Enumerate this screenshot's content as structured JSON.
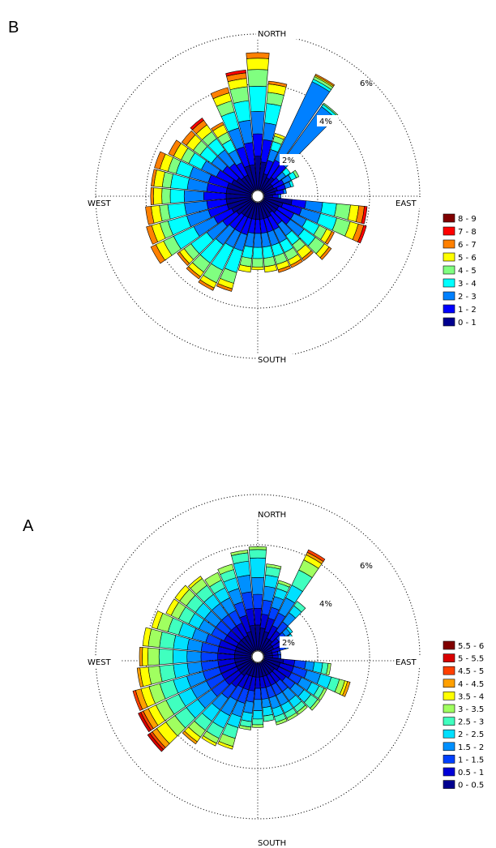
{
  "chart_data": [
    {
      "type": "windrose",
      "panel_label": "B",
      "directions": [
        "NORTH",
        "EAST",
        "SOUTH",
        "WEST"
      ],
      "rings_pct": [
        2,
        4,
        6
      ],
      "ring_labels": [
        "2%",
        "4%",
        "6%"
      ],
      "bins": [
        "0 - 1",
        "1 - 2",
        "2 - 3",
        "3 - 4",
        "4 - 5",
        "5 - 6",
        "6 - 7",
        "7 - 8",
        "8 - 9"
      ],
      "legend": [
        "8 - 9",
        "7 - 8",
        "6 - 7",
        "5 - 6",
        "4 - 5",
        "3 - 4",
        "2 - 3",
        "1 - 2",
        "0 - 1"
      ],
      "colors": [
        "#00008f",
        "#0000ff",
        "#0080ff",
        "#00ffff",
        "#80ff80",
        "#ffff00",
        "#ff8000",
        "#ff0000",
        "#800000"
      ],
      "sectors": [
        {
          "dir": 0,
          "c": [
            1.2,
            0.8,
            0.8,
            0.9,
            0.6,
            0.4,
            0.2
          ]
        },
        {
          "dir": 10,
          "c": [
            1.0,
            0.8,
            0.6,
            0.7,
            0.4,
            0.3,
            0.1
          ]
        },
        {
          "dir": 20,
          "c": [
            0.6,
            0.5,
            0.4,
            0.3,
            0.2,
            0.1
          ]
        },
        {
          "dir": 30,
          "c": [
            0.5,
            0.7,
            3.1,
            0.1,
            0.1,
            0.05,
            0.05
          ]
        },
        {
          "dir": 40,
          "c": [
            0.6,
            0.6,
            2.5,
            0.1,
            0.05
          ]
        },
        {
          "dir": 50,
          "c": [
            0.4,
            0.3,
            0.3,
            0.2
          ]
        },
        {
          "dir": 60,
          "c": [
            0.4,
            0.4,
            0.3,
            0.2,
            0.1
          ]
        },
        {
          "dir": 70,
          "c": [
            0.5,
            0.3,
            0.2,
            0.1
          ]
        },
        {
          "dir": 80,
          "c": [
            0.4,
            0.3,
            0.1
          ]
        },
        {
          "dir": 90,
          "c": [
            0.3,
            0.2,
            0.1
          ]
        },
        {
          "dir": 100,
          "c": [
            1.0,
            0.5,
            0.6,
            0.5,
            0.5,
            0.3,
            0.2,
            0.1
          ]
        },
        {
          "dir": 110,
          "c": [
            0.7,
            0.7,
            0.7,
            0.6,
            0.5,
            0.3,
            0.2,
            0.1
          ]
        },
        {
          "dir": 120,
          "c": [
            0.6,
            0.6,
            0.5,
            0.5,
            0.3,
            0.2,
            0.1
          ]
        },
        {
          "dir": 130,
          "c": [
            0.6,
            0.6,
            0.6,
            0.5,
            0.4,
            0.2,
            0.1
          ]
        },
        {
          "dir": 140,
          "c": [
            0.5,
            0.5,
            0.5,
            0.4,
            0.3,
            0.3,
            0.1
          ]
        },
        {
          "dir": 150,
          "c": [
            0.6,
            0.5,
            0.5,
            0.4,
            0.3,
            0.2,
            0.1
          ]
        },
        {
          "dir": 160,
          "c": [
            0.6,
            0.5,
            0.5,
            0.4,
            0.3,
            0.2,
            0.1
          ]
        },
        {
          "dir": 170,
          "c": [
            0.6,
            0.5,
            0.5,
            0.4,
            0.3,
            0.2
          ]
        },
        {
          "dir": 180,
          "c": [
            0.6,
            0.5,
            0.5,
            0.4,
            0.3,
            0.1
          ]
        },
        {
          "dir": 190,
          "c": [
            0.6,
            0.5,
            0.5,
            0.4,
            0.3,
            0.2
          ]
        },
        {
          "dir": 200,
          "c": [
            0.6,
            0.6,
            0.6,
            0.8,
            0.4,
            0.2,
            0.1
          ]
        },
        {
          "dir": 210,
          "c": [
            0.6,
            0.6,
            0.6,
            0.9,
            0.5,
            0.2,
            0.1
          ]
        },
        {
          "dir": 220,
          "c": [
            0.6,
            0.6,
            0.7,
            0.8,
            0.4,
            0.2,
            0.1
          ]
        },
        {
          "dir": 230,
          "c": [
            0.7,
            0.6,
            0.7,
            0.7,
            0.3,
            0.2,
            0.1
          ]
        },
        {
          "dir": 240,
          "c": [
            0.8,
            0.7,
            0.8,
            0.8,
            0.4,
            0.3,
            0.2
          ]
        },
        {
          "dir": 250,
          "c": [
            0.9,
            0.7,
            0.8,
            0.7,
            0.3,
            0.3,
            0.2
          ]
        },
        {
          "dir": 260,
          "c": [
            0.9,
            0.7,
            0.8,
            0.6,
            0.3,
            0.3,
            0.2
          ]
        },
        {
          "dir": 270,
          "c": [
            0.9,
            0.8,
            0.7,
            0.5,
            0.3,
            0.3,
            0.1
          ]
        },
        {
          "dir": 280,
          "c": [
            0.9,
            0.7,
            0.7,
            0.6,
            0.3,
            0.3,
            0.1
          ]
        },
        {
          "dir": 290,
          "c": [
            0.9,
            0.7,
            0.7,
            0.5,
            0.3,
            0.3,
            0.2
          ]
        },
        {
          "dir": 300,
          "c": [
            0.8,
            0.6,
            0.6,
            0.5,
            0.3,
            0.3,
            0.2
          ]
        },
        {
          "dir": 310,
          "c": [
            0.7,
            0.6,
            0.5,
            0.5,
            0.3,
            0.3,
            0.2
          ]
        },
        {
          "dir": 320,
          "c": [
            0.6,
            0.6,
            0.6,
            0.5,
            0.3,
            0.3,
            0.2,
            0.1
          ]
        },
        {
          "dir": 330,
          "c": [
            0.6,
            0.5,
            0.5,
            0.4,
            0.3,
            0.3,
            0.1
          ]
        },
        {
          "dir": 340,
          "c": [
            0.9,
            0.7,
            0.7,
            0.6,
            0.4,
            0.3,
            0.2
          ]
        },
        {
          "dir": 350,
          "c": [
            0.9,
            0.8,
            0.8,
            0.7,
            0.5,
            0.3,
            0.2,
            0.1
          ]
        }
      ]
    },
    {
      "type": "windrose",
      "panel_label": "A",
      "directions": [
        "NORTH",
        "EAST",
        "SOUTH",
        "WEST"
      ],
      "rings_pct": [
        2,
        4,
        6
      ],
      "ring_labels": [
        "2%",
        "4%",
        "6%"
      ],
      "bins": [
        "0 - 0.5",
        "0.5 - 1",
        "1 - 1.5",
        "1.5 - 2",
        "2 - 2.5",
        "2.5 - 3",
        "3 - 3.5",
        "3.5 - 4",
        "4 - 4.5",
        "4.5 - 5",
        "5 - 5.5",
        "5.5 - 6"
      ],
      "legend": [
        "5.5 - 6",
        "5 - 5.5",
        "4.5 - 5",
        "4 - 4.5",
        "3.5 - 4",
        "3 - 3.5",
        "2.5 - 3",
        "2 - 2.5",
        "1.5 - 2",
        "1 - 1.5",
        "0.5 - 1",
        "0 - 0.5"
      ],
      "colors": [
        "#00008f",
        "#0000d8",
        "#0040ff",
        "#0090ff",
        "#00e0ff",
        "#40ffbf",
        "#a0ff60",
        "#ffff00",
        "#ffa000",
        "#ff4000",
        "#d80000",
        "#800000"
      ],
      "sectors": [
        {
          "dir": 0,
          "c": [
            0.9,
            0.6,
            0.5,
            0.6,
            0.7,
            0.3,
            0.1
          ]
        },
        {
          "dir": 10,
          "c": [
            0.8,
            0.5,
            0.5,
            0.5,
            0.4,
            0.3,
            0.1
          ]
        },
        {
          "dir": 20,
          "c": [
            0.7,
            0.5,
            0.4,
            0.4,
            0.3,
            0.2,
            0.1
          ]
        },
        {
          "dir": 30,
          "c": [
            0.5,
            0.5,
            0.5,
            0.6,
            0.5,
            0.6,
            0.4,
            0.2,
            0.1,
            0.1
          ]
        },
        {
          "dir": 40,
          "c": [
            0.5,
            0.4,
            0.4,
            0.4,
            0.3,
            0.2
          ]
        },
        {
          "dir": 50,
          "c": [
            0.4,
            0.3,
            0.3,
            0.2,
            0.1
          ]
        },
        {
          "dir": 60,
          "c": [
            0.4,
            0.3,
            0.2,
            0.2,
            0.1
          ]
        },
        {
          "dir": 70,
          "c": [
            0.3,
            0.3,
            0.2,
            0.1
          ]
        },
        {
          "dir": 80,
          "c": [
            0.3,
            0.2,
            0.1
          ]
        },
        {
          "dir": 90,
          "c": [
            0.3,
            0.2,
            0.1
          ]
        },
        {
          "dir": 100,
          "c": [
            0.7,
            0.4,
            0.4,
            0.3,
            0.3,
            0.2,
            0.1
          ]
        },
        {
          "dir": 110,
          "c": [
            0.6,
            0.5,
            0.5,
            0.5,
            0.4,
            0.3,
            0.2,
            0.1,
            0.1
          ]
        },
        {
          "dir": 120,
          "c": [
            0.6,
            0.5,
            0.4,
            0.4,
            0.3,
            0.2,
            0.1
          ]
        },
        {
          "dir": 130,
          "c": [
            0.5,
            0.5,
            0.4,
            0.4,
            0.3,
            0.3,
            0.1
          ]
        },
        {
          "dir": 140,
          "c": [
            0.5,
            0.4,
            0.4,
            0.4,
            0.3,
            0.2,
            0.1
          ]
        },
        {
          "dir": 150,
          "c": [
            0.5,
            0.4,
            0.4,
            0.4,
            0.3,
            0.2,
            0.1
          ]
        },
        {
          "dir": 160,
          "c": [
            0.5,
            0.4,
            0.4,
            0.4,
            0.3,
            0.2,
            0.1
          ]
        },
        {
          "dir": 170,
          "c": [
            0.5,
            0.4,
            0.4,
            0.3,
            0.3,
            0.2
          ]
        },
        {
          "dir": 180,
          "c": [
            0.5,
            0.4,
            0.4,
            0.4,
            0.3,
            0.2,
            0.1
          ]
        },
        {
          "dir": 190,
          "c": [
            0.5,
            0.5,
            0.4,
            0.4,
            0.3,
            0.2,
            0.1
          ]
        },
        {
          "dir": 200,
          "c": [
            0.5,
            0.5,
            0.5,
            0.5,
            0.4,
            0.4,
            0.3,
            0.1
          ]
        },
        {
          "dir": 210,
          "c": [
            0.5,
            0.5,
            0.5,
            0.6,
            0.5,
            0.4,
            0.2,
            0.1
          ]
        },
        {
          "dir": 220,
          "c": [
            0.6,
            0.5,
            0.5,
            0.5,
            0.5,
            0.4,
            0.3,
            0.2,
            0.1
          ]
        },
        {
          "dir": 230,
          "c": [
            0.6,
            0.6,
            0.6,
            0.6,
            0.5,
            0.5,
            0.4,
            0.4,
            0.2,
            0.1,
            0.1
          ]
        },
        {
          "dir": 240,
          "c": [
            0.6,
            0.6,
            0.6,
            0.6,
            0.5,
            0.5,
            0.4,
            0.3,
            0.2,
            0.1,
            0.1
          ]
        },
        {
          "dir": 250,
          "c": [
            0.6,
            0.6,
            0.6,
            0.6,
            0.5,
            0.5,
            0.4,
            0.3,
            0.2,
            0.1
          ]
        },
        {
          "dir": 260,
          "c": [
            0.6,
            0.6,
            0.6,
            0.5,
            0.5,
            0.5,
            0.4,
            0.3,
            0.1
          ]
        },
        {
          "dir": 270,
          "c": [
            0.6,
            0.6,
            0.6,
            0.5,
            0.5,
            0.5,
            0.4,
            0.2,
            0.1
          ]
        },
        {
          "dir": 280,
          "c": [
            0.6,
            0.6,
            0.6,
            0.5,
            0.5,
            0.5,
            0.4,
            0.2
          ]
        },
        {
          "dir": 290,
          "c": [
            0.6,
            0.6,
            0.5,
            0.5,
            0.5,
            0.4,
            0.4,
            0.2
          ]
        },
        {
          "dir": 300,
          "c": [
            0.6,
            0.5,
            0.5,
            0.5,
            0.4,
            0.4,
            0.3,
            0.2
          ]
        },
        {
          "dir": 310,
          "c": [
            0.6,
            0.5,
            0.5,
            0.5,
            0.4,
            0.4,
            0.3,
            0.2
          ]
        },
        {
          "dir": 320,
          "c": [
            0.6,
            0.5,
            0.5,
            0.5,
            0.4,
            0.4,
            0.3,
            0.1
          ]
        },
        {
          "dir": 330,
          "c": [
            0.6,
            0.5,
            0.5,
            0.5,
            0.4,
            0.3,
            0.3
          ]
        },
        {
          "dir": 340,
          "c": [
            0.7,
            0.6,
            0.5,
            0.5,
            0.4,
            0.3,
            0.2
          ]
        },
        {
          "dir": 350,
          "c": [
            0.9,
            0.6,
            0.6,
            0.6,
            0.5,
            0.3,
            0.1
          ]
        }
      ]
    }
  ]
}
